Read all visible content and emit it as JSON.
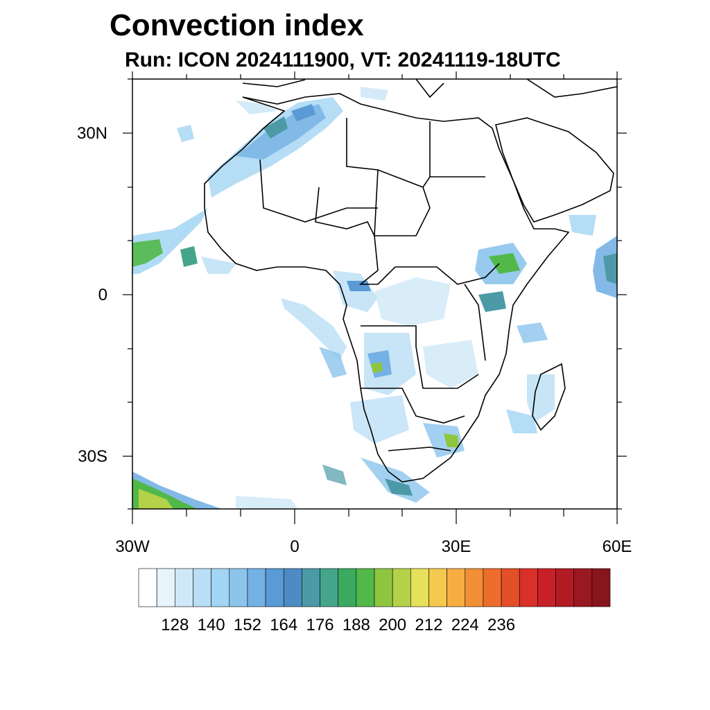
{
  "header": {
    "title": "Convection index",
    "subtitle": "Run: ICON 2024111900,  VT: 20241119-18UTC"
  },
  "axes": {
    "lat_labels": [
      "30N",
      "0",
      "30S"
    ],
    "lon_labels": [
      "30W",
      "0",
      "30E",
      "60E"
    ],
    "lon_range": [
      -30,
      60
    ],
    "lat_range": [
      -40,
      40
    ]
  },
  "colorbar": {
    "levels": [
      128,
      140,
      152,
      164,
      176,
      188,
      200,
      212,
      224,
      236
    ],
    "colors": [
      "#ffffff",
      "#e8f4fb",
      "#cfe8f7",
      "#b9def5",
      "#a2d5f3",
      "#8cc4ec",
      "#74b1e4",
      "#5a9ad6",
      "#4c8bc4",
      "#4b9aa6",
      "#45a58a",
      "#3aaa5e",
      "#52b84a",
      "#8ec63f",
      "#b4d14a",
      "#e6e15a",
      "#f5c94f",
      "#f6ad42",
      "#f28f36",
      "#ee6d2c",
      "#e24f28",
      "#d9302a",
      "#c82028",
      "#b21b24",
      "#9a1820",
      "#86161b"
    ]
  },
  "icons": {
    "map": "africa-convection-map-icon"
  }
}
